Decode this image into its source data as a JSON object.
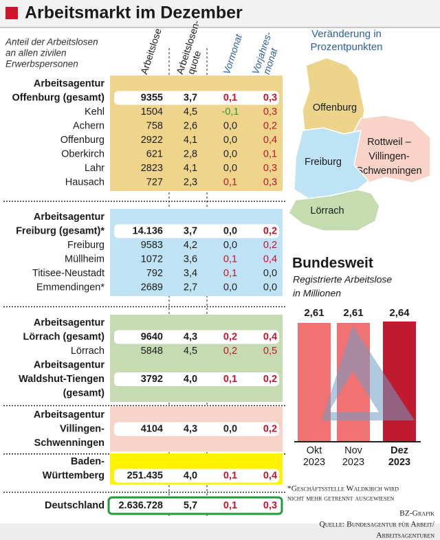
{
  "header": {
    "title": "Arbeitsmarkt im Dezember"
  },
  "table": {
    "subtitle": [
      "Anteil der Arbeitslosen",
      "an allen zivilen",
      "Erwerbspersonen"
    ],
    "columns": [
      [
        "Arbeitslose"
      ],
      [
        "Arbeitslosen-",
        "quote"
      ],
      [
        "Vormonat"
      ],
      [
        "Vorjahres-",
        "monat"
      ]
    ],
    "groups": [
      {
        "color": "#efd48c",
        "rows": [
          {
            "lines": [
              "Arbeitsagentur",
              "Offenburg (gesamt)"
            ],
            "values": [
              "9355",
              "3,7",
              "0,1",
              "0,3"
            ]
          },
          {
            "lines": [
              "Kehl"
            ],
            "values": [
              "1504",
              "4,5",
              "-0,1",
              "0,3"
            ]
          },
          {
            "lines": [
              "Achern"
            ],
            "values": [
              "758",
              "2,6",
              "0,0",
              "0,2"
            ]
          },
          {
            "lines": [
              "Offenburg"
            ],
            "values": [
              "2922",
              "4,1",
              "0,0",
              "0,4"
            ]
          },
          {
            "lines": [
              "Oberkirch"
            ],
            "values": [
              "621",
              "2,8",
              "0,0",
              "0,1"
            ]
          },
          {
            "lines": [
              "Lahr"
            ],
            "values": [
              "2823",
              "4,1",
              "0,0",
              "0,3"
            ]
          },
          {
            "lines": [
              "Hausach"
            ],
            "values": [
              "727",
              "2,3",
              "0,1",
              "0,3"
            ]
          }
        ]
      },
      {
        "color": "#bfe3f5",
        "rows": [
          {
            "lines": [
              "Arbeitsagentur",
              "Freiburg (gesamt)*"
            ],
            "values": [
              "14.136",
              "3,7",
              "0,0",
              "0,2"
            ]
          },
          {
            "lines": [
              "Freiburg"
            ],
            "values": [
              "9583",
              "4,2",
              "0,0",
              "0,2"
            ]
          },
          {
            "lines": [
              "Müllheim"
            ],
            "values": [
              "1072",
              "3,6",
              "0,1",
              "0,4"
            ]
          },
          {
            "lines": [
              "Titisee-Neustadt"
            ],
            "values": [
              "792",
              "3,4",
              "0,1",
              "0,0"
            ]
          },
          {
            "lines": [
              "Emmendingen*"
            ],
            "values": [
              "2689",
              "2,7",
              "0,0",
              "0,0"
            ]
          }
        ]
      },
      {
        "color": "#c6dbb1",
        "rows": [
          {
            "lines": [
              "Arbeitsagentur",
              "Lörrach (gesamt)"
            ],
            "values": [
              "9640",
              "4,3",
              "0,2",
              "0,4"
            ]
          },
          {
            "lines": [
              "Lörrach"
            ],
            "values": [
              "5848",
              "4,5",
              "0,2",
              "0,5"
            ]
          },
          {
            "lines": [
              "Arbeitsagentur",
              "Waldshut-Tiengen",
              "(gesamt)"
            ],
            "values": [
              "3792",
              "4,0",
              "0,1",
              "0,2"
            ]
          }
        ]
      },
      {
        "color": "#f8d4c8",
        "rows": [
          {
            "lines": [
              "Arbeitsagentur",
              "Villingen-",
              "Schwenningen"
            ],
            "values": [
              "4104",
              "4,3",
              "0,0",
              "0,2"
            ]
          }
        ]
      },
      {
        "color": "#fff200",
        "rows": [
          {
            "lines": [
              "Baden-",
              "Württemberg"
            ],
            "values": [
              "251.435",
              "4,0",
              "0,1",
              "0,4"
            ]
          }
        ]
      },
      {
        "color": "#1f9a3c",
        "rows": [
          {
            "lines": [
              "Deutschland"
            ],
            "values": [
              "2.636.728",
              "5,7",
              "0,1",
              "0,3"
            ]
          }
        ]
      }
    ],
    "footnote": [
      "*Geschäftsstelle Waldkirch wird",
      "nicht mehr getrennt ausgewiesen"
    ]
  },
  "map": {
    "title": [
      "Veränderung in",
      "Prozentpunkten"
    ],
    "regions": [
      {
        "label": [
          "Offenburg"
        ],
        "color": "#ecd58a"
      },
      {
        "label": [
          "Rottweil –",
          "Villingen-",
          "Schwenningen"
        ],
        "color": "#f9d3c7"
      },
      {
        "label": [
          "Freiburg"
        ],
        "color": "#bde3f5"
      },
      {
        "label": [
          "Lörrach"
        ],
        "color": "#c5dbb0"
      }
    ]
  },
  "chart_data": {
    "type": "bar",
    "title": "Bundesweit",
    "subtitle": [
      "Registrierte Arbeitslose",
      "in Millionen"
    ],
    "categories": [
      [
        "Okt",
        "2023"
      ],
      [
        "Nov",
        "2023"
      ],
      [
        "Dez",
        "2023"
      ]
    ],
    "values": [
      2.61,
      2.61,
      2.64
    ],
    "value_labels": [
      "2,61",
      "2,61",
      "2,64"
    ],
    "colors": [
      "#f07272",
      "#f07272",
      "#c01a30"
    ]
  },
  "credits": [
    "BZ-Grafik",
    "Quelle: Bundesagentur für Arbeit/",
    "Arbeitsagenturen"
  ]
}
